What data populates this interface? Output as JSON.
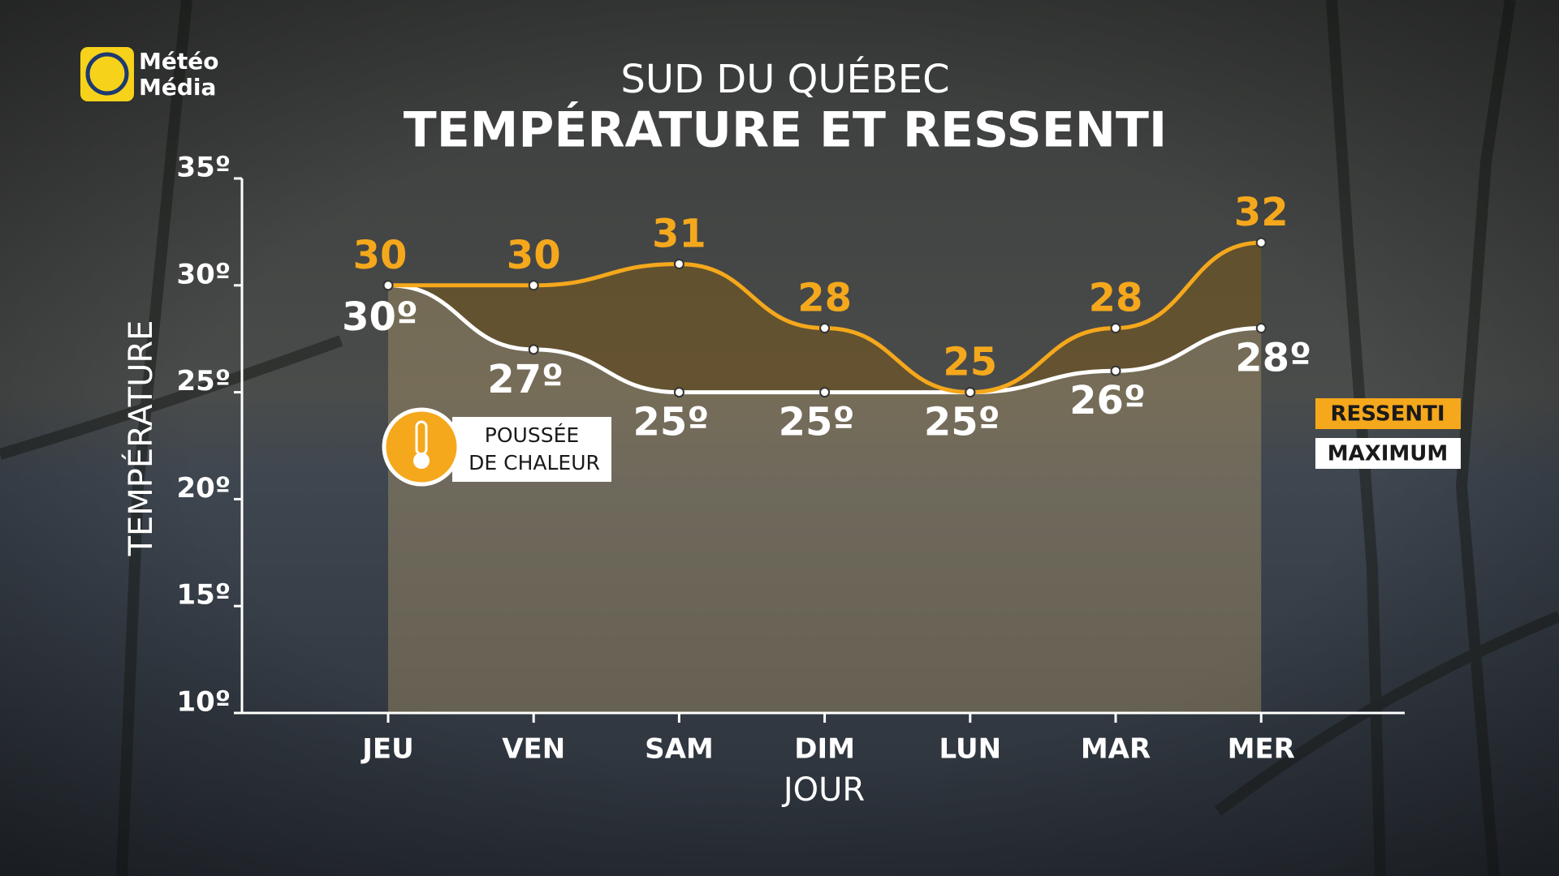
{
  "chart_data": {
    "type": "line",
    "subtitle": "SUD DU QUÉBEC",
    "title": "TEMPÉRATURE ET RESSENTI",
    "brand": [
      "Météo",
      "Média"
    ],
    "annotation": [
      "POUSSÉE",
      "DE CHALEUR"
    ],
    "x_label": "JOUR",
    "y_label": "TEMPÉRATURE",
    "categories": [
      "JEU",
      "VEN",
      "SAM",
      "DIM",
      "LUN",
      "MAR",
      "MER"
    ],
    "series": [
      {
        "name": "RESSENTI",
        "color": "#f5a81c",
        "values": [
          30,
          30,
          31,
          28,
          25,
          28,
          32
        ]
      },
      {
        "name": "MAXIMUM",
        "color": "#ffffff",
        "values": [
          30,
          27,
          25,
          25,
          25,
          26,
          28
        ],
        "value_labels": [
          "30º",
          "27º",
          "25º",
          "25º",
          "25º",
          "26º",
          "28º"
        ]
      }
    ],
    "ylim": [
      10,
      35
    ],
    "yticks": [
      {
        "value": 10,
        "label": "10º"
      },
      {
        "value": 15,
        "label": "15º"
      },
      {
        "value": 20,
        "label": "20º"
      },
      {
        "value": 25,
        "label": "25º"
      },
      {
        "value": 30,
        "label": "30º"
      },
      {
        "value": 35,
        "label": "35º"
      }
    ],
    "grid": false
  }
}
